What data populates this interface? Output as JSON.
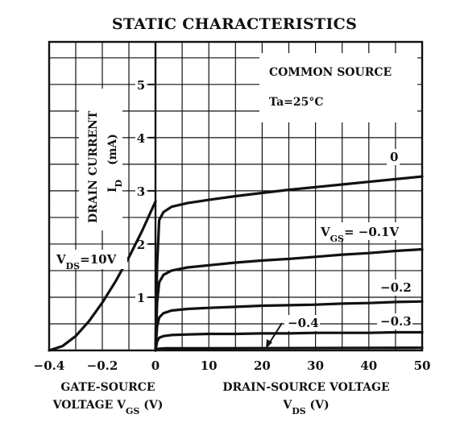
{
  "chart_data": {
    "type": "line",
    "title": "STATIC CHARACTERISTICS",
    "annotations": {
      "circuit": "COMMON SOURCE",
      "temperature": "Ta=25°C",
      "ylabel_line1": "DRAIN CURRENT",
      "ylabel_line2_main": "I",
      "ylabel_line2_sub": "D",
      "ylabel_unit": "(mA)"
    },
    "y_axis": {
      "range": [
        0,
        5.8
      ],
      "ticks": [
        1,
        2,
        3,
        4,
        5
      ],
      "tick_labels": [
        "1",
        "2",
        "3",
        "4",
        "5"
      ]
    },
    "left_panel": {
      "xlabel_line1": "GATE-SOURCE",
      "xlabel_line2_main": "VOLTAGE  V",
      "xlabel_line2_sub": "GS",
      "xlabel_unit": "(V)",
      "x_range": [
        -0.4,
        0
      ],
      "x_ticks": [
        -0.4,
        -0.3,
        -0.2,
        -0.1,
        0
      ],
      "x_tick_labels": [
        "−0.4",
        "−0.2",
        "0"
      ],
      "x_tick_label_values": [
        -0.4,
        -0.2,
        0
      ],
      "series": [
        {
          "name_main": "V",
          "name_sub": "DS",
          "name_rest": "=10V",
          "x": [
            -0.4,
            -0.35,
            -0.3,
            -0.25,
            -0.2,
            -0.15,
            -0.1,
            -0.05,
            0
          ],
          "y": [
            0.0,
            0.08,
            0.27,
            0.55,
            0.9,
            1.3,
            1.75,
            2.25,
            2.8
          ]
        }
      ]
    },
    "right_panel": {
      "xlabel_line1": "DRAIN-SOURCE VOLTAGE",
      "xlabel_line2_main": "V",
      "xlabel_line2_sub": "DS",
      "xlabel_unit": "(V)",
      "x_range": [
        0,
        50
      ],
      "x_ticks": [
        0,
        5,
        10,
        15,
        20,
        25,
        30,
        35,
        40,
        45,
        50
      ],
      "x_tick_labels": [
        "10",
        "20",
        "30",
        "40",
        "50"
      ],
      "x_tick_label_values": [
        10,
        20,
        30,
        40,
        50
      ],
      "series": [
        {
          "name": "0",
          "x": [
            0,
            0.3,
            0.7,
            1.5,
            3,
            6,
            10,
            15,
            20,
            25,
            30,
            35,
            40,
            45,
            50
          ],
          "y": [
            0,
            1.6,
            2.45,
            2.6,
            2.7,
            2.77,
            2.83,
            2.9,
            2.96,
            3.02,
            3.07,
            3.12,
            3.17,
            3.22,
            3.27
          ]
        },
        {
          "name": "−0.1V",
          "name_prefix_main": "V",
          "name_prefix_sub": "GS",
          "name_prefix_rest": "= ",
          "x": [
            0,
            0.3,
            0.7,
            1.5,
            3,
            6,
            10,
            15,
            20,
            25,
            30,
            35,
            40,
            45,
            50
          ],
          "y": [
            0,
            0.9,
            1.28,
            1.42,
            1.5,
            1.56,
            1.6,
            1.65,
            1.69,
            1.72,
            1.76,
            1.8,
            1.83,
            1.87,
            1.9
          ]
        },
        {
          "name": "−0.2",
          "x": [
            0,
            0.3,
            0.7,
            1.5,
            3,
            6,
            10,
            15,
            20,
            25,
            30,
            35,
            40,
            45,
            50
          ],
          "y": [
            0,
            0.45,
            0.62,
            0.7,
            0.75,
            0.78,
            0.8,
            0.82,
            0.84,
            0.85,
            0.86,
            0.88,
            0.89,
            0.91,
            0.92
          ]
        },
        {
          "name": "−0.3",
          "x": [
            0,
            0.3,
            0.7,
            1.5,
            3,
            6,
            10,
            15,
            20,
            25,
            30,
            35,
            40,
            45,
            50
          ],
          "y": [
            0,
            0.17,
            0.24,
            0.27,
            0.29,
            0.3,
            0.31,
            0.31,
            0.32,
            0.32,
            0.33,
            0.33,
            0.33,
            0.34,
            0.34
          ]
        },
        {
          "name": "−0.4",
          "x": [
            0,
            0.5,
            2,
            10,
            50
          ],
          "y": [
            0,
            0.03,
            0.04,
            0.04,
            0.05
          ]
        }
      ]
    }
  }
}
